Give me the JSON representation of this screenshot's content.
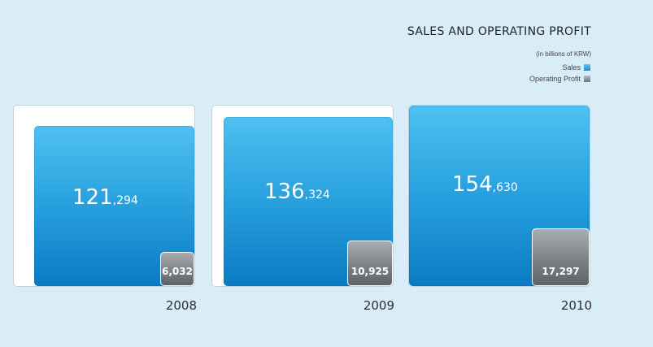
{
  "chart_data": {
    "type": "bar",
    "title": "SALES AND OPERATING PROFIT",
    "unit": "(in billions of KRW)",
    "categories": [
      "2008",
      "2009",
      "2010"
    ],
    "series": [
      {
        "name": "Sales",
        "values": [
          121294,
          136324,
          154630
        ],
        "labels": [
          {
            "major": "121",
            "minor": ",294"
          },
          {
            "major": "136",
            "minor": ",324"
          },
          {
            "major": "154",
            "minor": ",630"
          }
        ],
        "color": "#2aa3e0"
      },
      {
        "name": "Operating Profit",
        "values": [
          6032,
          10925,
          17297
        ],
        "labels": [
          "6,032",
          "10,925",
          "17,297"
        ],
        "color": "#7d8287"
      }
    ],
    "legend_position": "top-right",
    "encoding": "square-area"
  }
}
